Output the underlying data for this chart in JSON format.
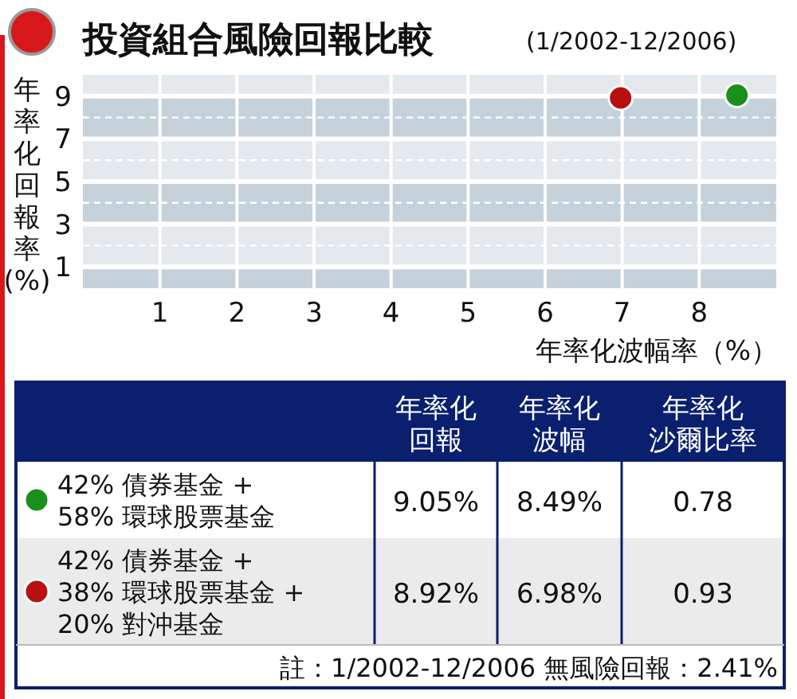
{
  "chart_data": {
    "type": "scatter",
    "title": "投資組合風險回報比較",
    "subtitle": "(1/2002-12/2006)",
    "xlabel": "年率化波幅率（%）",
    "ylabel": "年率化回報率(%)",
    "xlim": [
      0,
      9
    ],
    "xticks": [
      1,
      2,
      3,
      4,
      5,
      6,
      7,
      8
    ],
    "ylim": [
      0,
      10
    ],
    "yticks": [
      1,
      3,
      5,
      7,
      9
    ],
    "grid": true,
    "marker": "circle",
    "legend": "bottom",
    "series": [
      {
        "name": "42% 債券基金 +\n58% 環球股票基金",
        "color": "#1a8f1a",
        "x": [
          8.49
        ],
        "values": [
          9.05
        ]
      },
      {
        "name": "42% 債券基金 +\n38% 環球股票基金 +\n20% 對沖基金",
        "color": "#b81010",
        "x": [
          6.98
        ],
        "values": [
          8.92
        ]
      }
    ],
    "annotations": [
      "年率化回報",
      "年率化波幅",
      "年率化沙爾比率",
      "9.05%",
      "8.49%",
      "0.78",
      "8.92%",
      "6.98%",
      "0.93",
      "註：1/2002-12/2006 無風險回報：2.41%"
    ]
  }
}
